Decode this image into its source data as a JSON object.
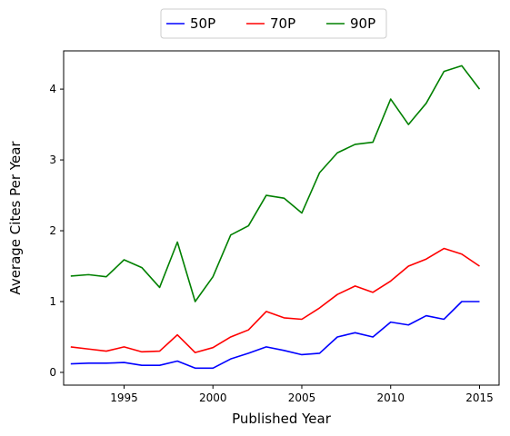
{
  "chart_data": {
    "type": "line",
    "xlabel": "Published Year",
    "ylabel": "Average Cites Per Year",
    "xlim": [
      1991.6,
      2016.1
    ],
    "ylim": [
      -0.18,
      4.54
    ],
    "xticks": [
      1995,
      2000,
      2005,
      2010,
      2015
    ],
    "yticks": [
      0,
      1,
      2,
      3,
      4
    ],
    "grid": false,
    "legend_position": "top-center-outside",
    "x": [
      1992,
      1993,
      1994,
      1995,
      1996,
      1997,
      1998,
      1999,
      2000,
      2001,
      2002,
      2003,
      2004,
      2005,
      2006,
      2007,
      2008,
      2009,
      2010,
      2011,
      2012,
      2013,
      2014,
      2015
    ],
    "series": [
      {
        "name": "50P",
        "color": "#0000ff",
        "values": [
          0.12,
          0.13,
          0.13,
          0.14,
          0.1,
          0.1,
          0.16,
          0.06,
          0.06,
          0.19,
          0.27,
          0.36,
          0.31,
          0.25,
          0.27,
          0.5,
          0.56,
          0.5,
          0.71,
          0.67,
          0.8,
          0.75,
          1.0,
          1.0
        ]
      },
      {
        "name": "70P",
        "color": "#ff0000",
        "values": [
          0.36,
          0.33,
          0.3,
          0.36,
          0.29,
          0.3,
          0.53,
          0.28,
          0.35,
          0.5,
          0.6,
          0.86,
          0.77,
          0.75,
          0.91,
          1.1,
          1.22,
          1.13,
          1.29,
          1.5,
          1.6,
          1.75,
          1.67,
          1.5
        ]
      },
      {
        "name": "90P",
        "color": "#008000",
        "values": [
          1.36,
          1.38,
          1.35,
          1.59,
          1.48,
          1.2,
          1.84,
          1.0,
          1.35,
          1.94,
          2.07,
          2.5,
          2.46,
          2.25,
          2.82,
          3.1,
          3.22,
          3.25,
          3.86,
          3.5,
          3.8,
          4.25,
          4.33,
          4.0
        ]
      }
    ]
  }
}
